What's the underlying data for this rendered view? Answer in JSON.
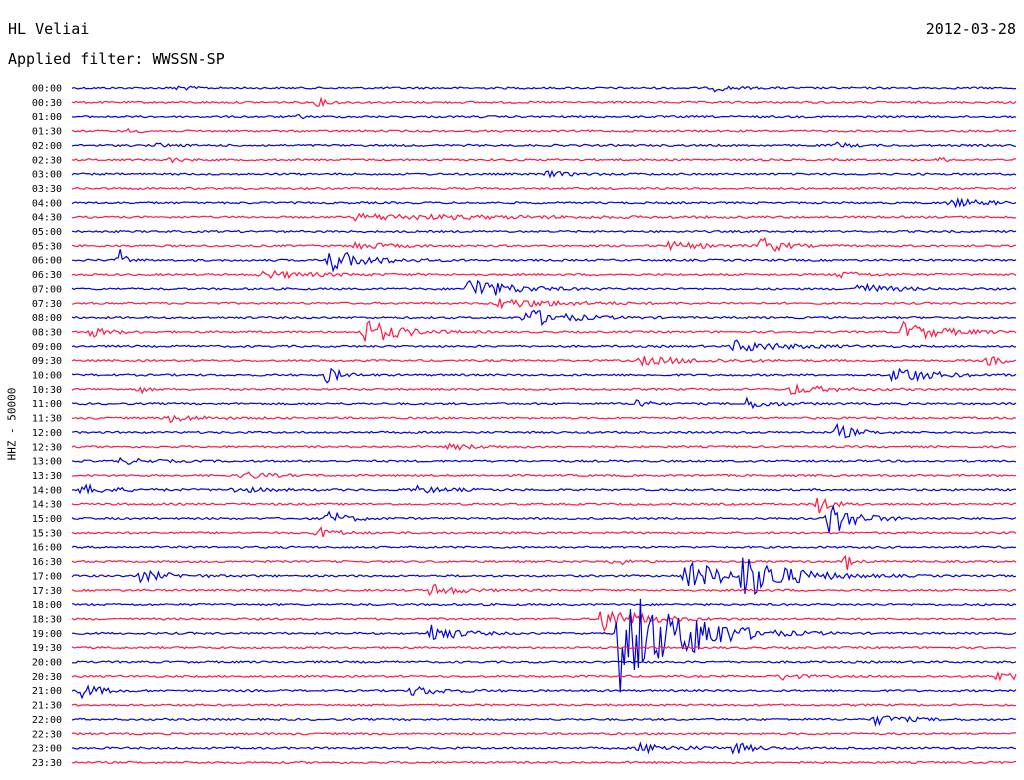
{
  "header": {
    "station": "HL Veliai",
    "date": "2012-03-28",
    "filter": "Applied filter: WWSSN-SP"
  },
  "chart_data": {
    "type": "line",
    "title": "",
    "ylabel": "HHZ - 50000",
    "xlabel": "",
    "grid": false,
    "legend": "none",
    "colors": [
      "#0000dd",
      "#ff1744"
    ],
    "trace_window_minutes": 30,
    "tick_labels": [
      "00:00",
      "00:30",
      "01:00",
      "01:30",
      "02:00",
      "02:30",
      "03:00",
      "03:30",
      "04:00",
      "04:30",
      "05:00",
      "05:30",
      "06:00",
      "06:30",
      "07:00",
      "07:30",
      "08:00",
      "08:30",
      "09:00",
      "09:30",
      "10:00",
      "10:30",
      "11:00",
      "11:30",
      "12:00",
      "12:30",
      "13:00",
      "13:30",
      "14:00",
      "14:30",
      "15:00",
      "15:30",
      "16:00",
      "16:30",
      "17:00",
      "17:30",
      "18:00",
      "18:30",
      "19:00",
      "19:30",
      "20:00",
      "20:30",
      "21:00",
      "21:30",
      "22:00",
      "22:30",
      "23:00",
      "23:30"
    ],
    "events": [
      {
        "row": 0,
        "pos": 0.11,
        "amp": 3,
        "width": 0.02
      },
      {
        "row": 0,
        "pos": 0.68,
        "amp": 3,
        "width": 0.03
      },
      {
        "row": 1,
        "pos": 0.26,
        "amp": 4,
        "width": 0.02
      },
      {
        "row": 2,
        "pos": 0.24,
        "amp": 2,
        "width": 0.01
      },
      {
        "row": 3,
        "pos": 0.06,
        "amp": 2,
        "width": 0.02
      },
      {
        "row": 4,
        "pos": 0.09,
        "amp": 2,
        "width": 0.02
      },
      {
        "row": 4,
        "pos": 0.81,
        "amp": 3,
        "width": 0.02
      },
      {
        "row": 5,
        "pos": 0.1,
        "amp": 3,
        "width": 0.02
      },
      {
        "row": 5,
        "pos": 0.92,
        "amp": 3,
        "width": 0.01
      },
      {
        "row": 6,
        "pos": 0.5,
        "amp": 3,
        "width": 0.04
      },
      {
        "row": 8,
        "pos": 0.93,
        "amp": 4,
        "width": 0.06
      },
      {
        "row": 9,
        "pos": 0.3,
        "amp": 3,
        "width": 0.25
      },
      {
        "row": 11,
        "pos": 0.3,
        "amp": 4,
        "width": 0.05
      },
      {
        "row": 11,
        "pos": 0.63,
        "amp": 4,
        "width": 0.06
      },
      {
        "row": 11,
        "pos": 0.73,
        "amp": 10,
        "width": 0.03
      },
      {
        "row": 12,
        "pos": 0.05,
        "amp": 12,
        "width": 0.01
      },
      {
        "row": 12,
        "pos": 0.27,
        "amp": 12,
        "width": 0.06
      },
      {
        "row": 13,
        "pos": 0.2,
        "amp": 4,
        "width": 0.08
      },
      {
        "row": 13,
        "pos": 0.81,
        "amp": 3,
        "width": 0.05
      },
      {
        "row": 14,
        "pos": 0.42,
        "amp": 13,
        "width": 0.06
      },
      {
        "row": 14,
        "pos": 0.83,
        "amp": 6,
        "width": 0.05
      },
      {
        "row": 15,
        "pos": 0.45,
        "amp": 5,
        "width": 0.1
      },
      {
        "row": 16,
        "pos": 0.48,
        "amp": 10,
        "width": 0.06
      },
      {
        "row": 17,
        "pos": 0.02,
        "amp": 5,
        "width": 0.03
      },
      {
        "row": 17,
        "pos": 0.31,
        "amp": 14,
        "width": 0.05
      },
      {
        "row": 17,
        "pos": 0.88,
        "amp": 10,
        "width": 0.06
      },
      {
        "row": 18,
        "pos": 0.7,
        "amp": 6,
        "width": 0.08
      },
      {
        "row": 19,
        "pos": 0.6,
        "amp": 4,
        "width": 0.1
      },
      {
        "row": 19,
        "pos": 0.97,
        "amp": 4,
        "width": 0.04
      },
      {
        "row": 20,
        "pos": 0.27,
        "amp": 10,
        "width": 0.02
      },
      {
        "row": 20,
        "pos": 0.87,
        "amp": 11,
        "width": 0.05
      },
      {
        "row": 21,
        "pos": 0.07,
        "amp": 6,
        "width": 0.01
      },
      {
        "row": 21,
        "pos": 0.76,
        "amp": 5,
        "width": 0.06
      },
      {
        "row": 22,
        "pos": 0.6,
        "amp": 12,
        "width": 0.01
      },
      {
        "row": 22,
        "pos": 0.71,
        "amp": 6,
        "width": 0.04
      },
      {
        "row": 23,
        "pos": 0.1,
        "amp": 4,
        "width": 0.05
      },
      {
        "row": 24,
        "pos": 0.81,
        "amp": 8,
        "width": 0.03
      },
      {
        "row": 25,
        "pos": 0.4,
        "amp": 3,
        "width": 0.05
      },
      {
        "row": 26,
        "pos": 0.05,
        "amp": 3,
        "width": 0.05
      },
      {
        "row": 27,
        "pos": 0.18,
        "amp": 4,
        "width": 0.04
      },
      {
        "row": 28,
        "pos": 0.01,
        "amp": 5,
        "width": 0.05
      },
      {
        "row": 28,
        "pos": 0.17,
        "amp": 3,
        "width": 0.05
      },
      {
        "row": 28,
        "pos": 0.36,
        "amp": 4,
        "width": 0.05
      },
      {
        "row": 29,
        "pos": 0.79,
        "amp": 10,
        "width": 0.02
      },
      {
        "row": 30,
        "pos": 0.27,
        "amp": 8,
        "width": 0.03
      },
      {
        "row": 30,
        "pos": 0.8,
        "amp": 20,
        "width": 0.04
      },
      {
        "row": 31,
        "pos": 0.26,
        "amp": 6,
        "width": 0.03
      },
      {
        "row": 33,
        "pos": 0.57,
        "amp": 6,
        "width": 0.02
      },
      {
        "row": 33,
        "pos": 0.82,
        "amp": 10,
        "width": 0.01
      },
      {
        "row": 34,
        "pos": 0.07,
        "amp": 6,
        "width": 0.05
      },
      {
        "row": 34,
        "pos": 0.65,
        "amp": 18,
        "width": 0.06
      },
      {
        "row": 34,
        "pos": 0.71,
        "amp": 22,
        "width": 0.07
      },
      {
        "row": 35,
        "pos": 0.38,
        "amp": 7,
        "width": 0.04
      },
      {
        "row": 37,
        "pos": 0.56,
        "amp": 14,
        "width": 0.06
      },
      {
        "row": 38,
        "pos": 0.38,
        "amp": 10,
        "width": 0.04
      },
      {
        "row": 38,
        "pos": 0.58,
        "amp": 60,
        "width": 0.08
      },
      {
        "row": 38,
        "pos": 0.65,
        "amp": 14,
        "width": 0.05
      },
      {
        "row": 41,
        "pos": 0.75,
        "amp": 4,
        "width": 0.03
      },
      {
        "row": 41,
        "pos": 0.98,
        "amp": 10,
        "width": 0.02
      },
      {
        "row": 42,
        "pos": 0.01,
        "amp": 8,
        "width": 0.03
      },
      {
        "row": 42,
        "pos": 0.36,
        "amp": 5,
        "width": 0.05
      },
      {
        "row": 44,
        "pos": 0.85,
        "amp": 5,
        "width": 0.05
      },
      {
        "row": 46,
        "pos": 0.6,
        "amp": 5,
        "width": 0.06
      },
      {
        "row": 46,
        "pos": 0.7,
        "amp": 6,
        "width": 0.03
      }
    ]
  }
}
